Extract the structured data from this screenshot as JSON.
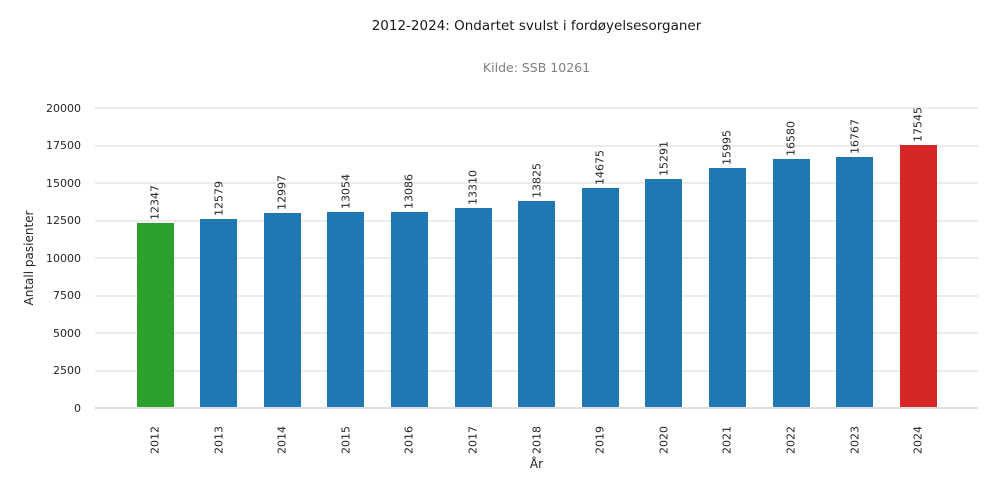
{
  "chart_data": {
    "type": "bar",
    "title": "2012-2024: Ondartet svulst i fordøyelsesorganer",
    "subtitle": "Kilde: SSB 10261",
    "xlabel": "År",
    "ylabel": "Antall pasienter",
    "categories": [
      "2012",
      "2013",
      "2014",
      "2015",
      "2016",
      "2017",
      "2018",
      "2019",
      "2020",
      "2021",
      "2022",
      "2023",
      "2024"
    ],
    "values": [
      12347,
      12579,
      12997,
      13054,
      13086,
      13310,
      13825,
      14675,
      15291,
      15995,
      16580,
      16767,
      17545
    ],
    "bar_colors": [
      "#2ca02c",
      "#1f77b4",
      "#1f77b4",
      "#1f77b4",
      "#1f77b4",
      "#1f77b4",
      "#1f77b4",
      "#1f77b4",
      "#1f77b4",
      "#1f77b4",
      "#1f77b4",
      "#1f77b4",
      "#d62728"
    ],
    "ylim": [
      0,
      20000
    ],
    "yticks": [
      0,
      2500,
      5000,
      7500,
      10000,
      12500,
      15000,
      17500,
      20000
    ],
    "grid": true,
    "value_labels": true,
    "legend": "none",
    "colors": {
      "highlight_first": "#2ca02c",
      "default": "#1f77b4",
      "highlight_last": "#d62728",
      "gridline": "#ececec",
      "axis_line": "#dfdfdf",
      "subtitle_text": "#7f7f7f",
      "text": "#262626"
    }
  }
}
